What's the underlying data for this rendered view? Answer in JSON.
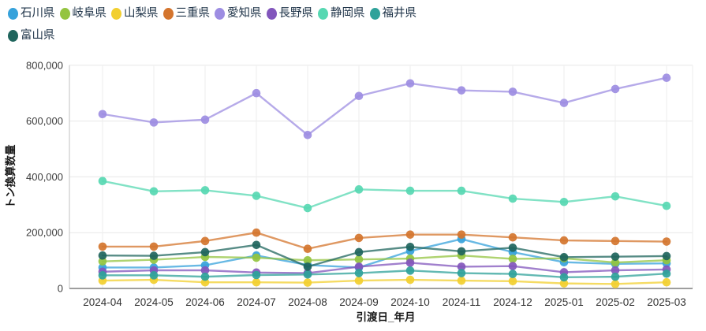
{
  "chart_data": {
    "type": "line",
    "x": [
      "2024-04",
      "2024-05",
      "2024-06",
      "2024-07",
      "2024-08",
      "2024-09",
      "2024-10",
      "2024-11",
      "2024-12",
      "2025-01",
      "2025-02",
      "2025-03"
    ],
    "series": [
      {
        "name": "石川県",
        "color": "#36A2DB",
        "values": [
          75000,
          75000,
          83000,
          118000,
          84000,
          75000,
          134000,
          177000,
          130000,
          94000,
          88000,
          90000
        ]
      },
      {
        "name": "岐阜県",
        "color": "#94C440",
        "values": [
          97000,
          103000,
          113000,
          110000,
          101000,
          104000,
          107000,
          118000,
          106000,
          108000,
          93000,
          101000
        ]
      },
      {
        "name": "山梨県",
        "color": "#F2CF2F",
        "values": [
          28000,
          31000,
          22000,
          22000,
          21000,
          28000,
          31000,
          28000,
          26000,
          18000,
          16000,
          22000
        ]
      },
      {
        "name": "三重県",
        "color": "#D4752E",
        "values": [
          150000,
          150000,
          170000,
          200000,
          142000,
          181000,
          193000,
          193000,
          183000,
          172000,
          170000,
          168000
        ]
      },
      {
        "name": "愛知県",
        "color": "#9D8DE2",
        "values": [
          625000,
          595000,
          605000,
          700000,
          550000,
          690000,
          735000,
          710000,
          705000,
          665000,
          715000,
          755000
        ]
      },
      {
        "name": "長野県",
        "color": "#8256BC",
        "values": [
          60000,
          65000,
          65000,
          57000,
          55000,
          78000,
          92000,
          78000,
          80000,
          58000,
          65000,
          68000
        ]
      },
      {
        "name": "静岡県",
        "color": "#57D8B2",
        "values": [
          385000,
          348000,
          352000,
          332000,
          288000,
          355000,
          350000,
          350000,
          322000,
          310000,
          330000,
          296000
        ]
      },
      {
        "name": "福井県",
        "color": "#2FA29A",
        "values": [
          47000,
          47000,
          42000,
          48000,
          50000,
          55000,
          64000,
          55000,
          52000,
          40000,
          42000,
          53000
        ]
      },
      {
        "name": "富山県",
        "color": "#1F655D",
        "values": [
          118000,
          117000,
          130000,
          156000,
          78000,
          130000,
          149000,
          133000,
          146000,
          112000,
          114000,
          116000
        ]
      }
    ],
    "xlabel": "引渡日_年月",
    "ylabel": "トン換算数量",
    "ylim": [
      0,
      800000
    ],
    "ytick_step": 200000,
    "ytick_labels": [
      "0",
      "200,000",
      "400,000",
      "600,000",
      "800,000"
    ],
    "grid": true,
    "legend_position": "top-left"
  },
  "colors": {
    "grid_h": "#e7e7e7",
    "grid_v": "#eeeeee",
    "axis_left": "#c2c2c2",
    "axis_bottom": "#9e9e9e",
    "legend_text": "#1e3348"
  }
}
